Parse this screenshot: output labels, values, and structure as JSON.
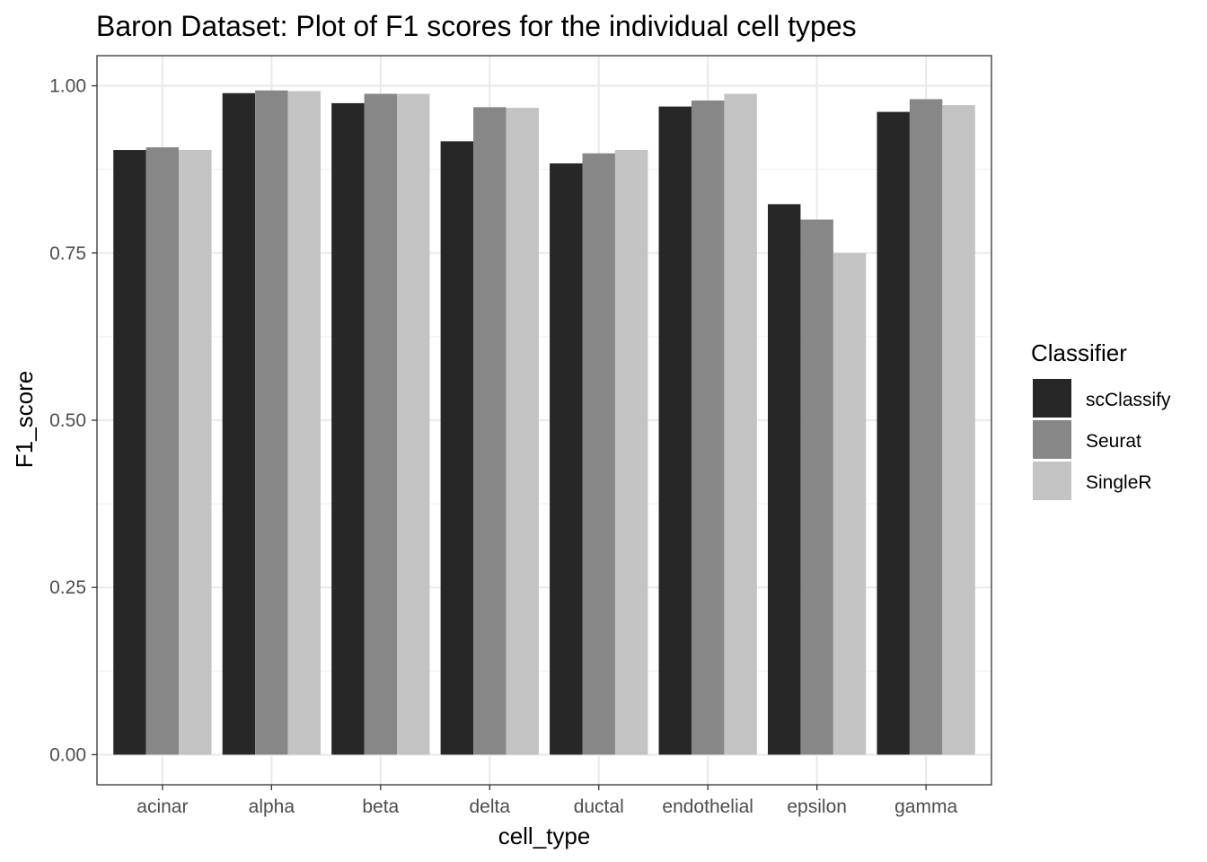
{
  "chart_data": {
    "type": "bar",
    "title": "Baron Dataset: Plot of F1 scores for the individual cell types",
    "xlabel": "cell_type",
    "ylabel": "F1_score",
    "ylim": [
      -0.045,
      1.045
    ],
    "yticks": [
      0.0,
      0.25,
      0.5,
      0.75,
      1.0
    ],
    "ytick_labels": [
      "0.00",
      "0.25",
      "0.50",
      "0.75",
      "1.00"
    ],
    "grid": true,
    "categories": [
      "acinar",
      "alpha",
      "beta",
      "delta",
      "ductal",
      "endothelial",
      "epsilon",
      "gamma"
    ],
    "series": [
      {
        "name": "scClassify",
        "color": "#272727",
        "values": [
          0.904,
          0.989,
          0.974,
          0.917,
          0.884,
          0.969,
          0.823,
          0.961
        ]
      },
      {
        "name": "Seurat",
        "color": "#878787",
        "values": [
          0.908,
          0.993,
          0.988,
          0.968,
          0.899,
          0.978,
          0.8,
          0.98
        ]
      },
      {
        "name": "SingleR",
        "color": "#c3c3c3",
        "values": [
          0.904,
          0.992,
          0.988,
          0.967,
          0.904,
          0.988,
          0.75,
          0.971
        ]
      }
    ],
    "legend": {
      "title": "Classifier",
      "placement": "right"
    }
  }
}
